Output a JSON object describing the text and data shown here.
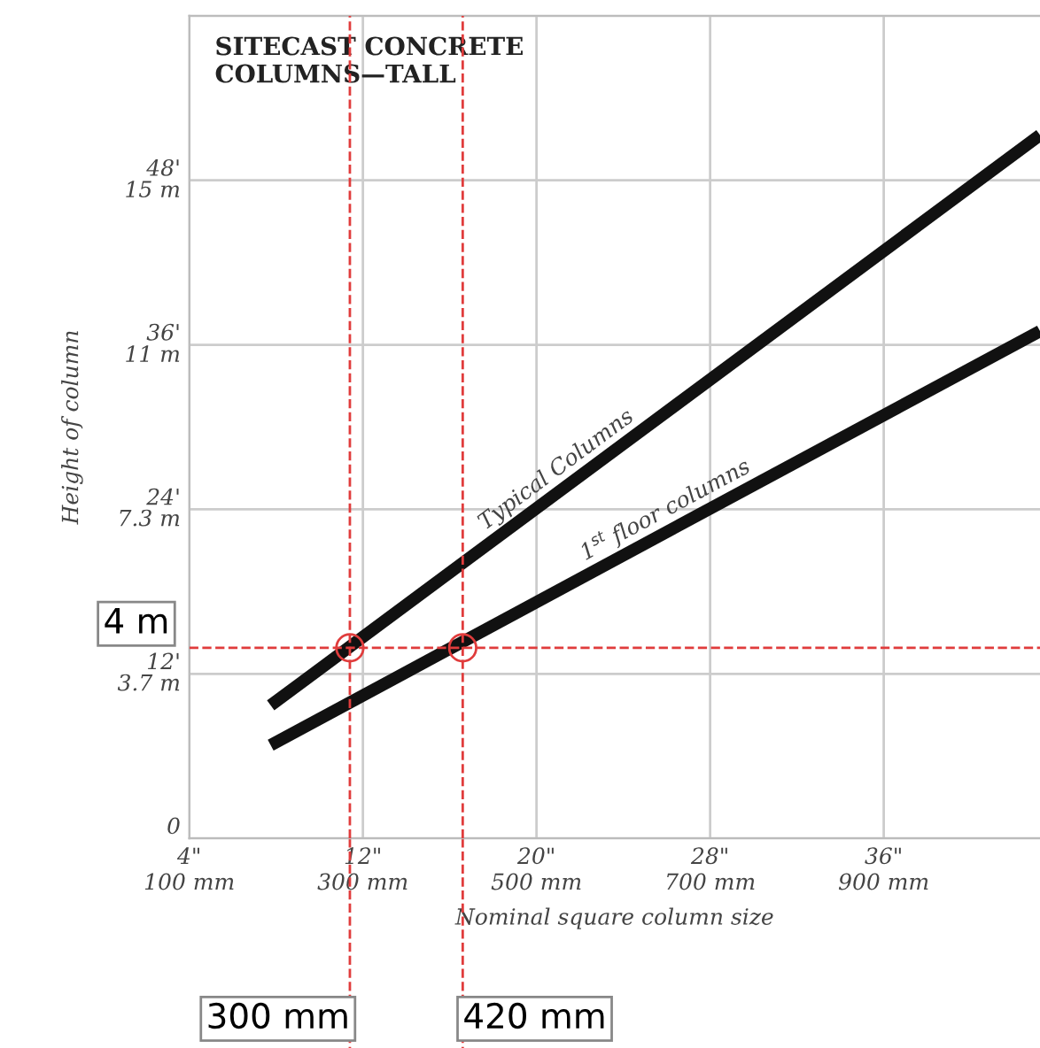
{
  "chart_data": {
    "type": "line",
    "title": "SITECAST CONCRETE\nCOLUMNS—TALL",
    "xlabel": "Nominal square column size",
    "y2label": "Height of column",
    "xlim": [
      4,
      43.2
    ],
    "ylim": [
      0,
      60
    ],
    "xticks": [
      {
        "value": 4,
        "label": "4\""
      },
      {
        "value": 12,
        "label": "12\""
      },
      {
        "value": 20,
        "label": "20\""
      },
      {
        "value": 28,
        "label": "28\""
      },
      {
        "value": 36,
        "label": "36\""
      }
    ],
    "x2lim": [
      100,
      1080
    ],
    "x2ticks": [
      {
        "value": 100,
        "label": "100 mm"
      },
      {
        "value": 300,
        "label": "300 mm"
      },
      {
        "value": 500,
        "label": "500 mm"
      },
      {
        "value": 700,
        "label": "700 mm"
      },
      {
        "value": 900,
        "label": "900 mm"
      }
    ],
    "yticks": [
      0,
      {
        "value": 12,
        "label": "12'"
      },
      {
        "value": 24,
        "label": "24'"
      },
      {
        "value": 36,
        "label": "36'"
      },
      {
        "value": 48,
        "label": "48'"
      },
      {
        "value": 60,
        "label": null
      }
    ],
    "y2lim": [
      0,
      18.29
    ],
    "y2ticks": [
      {
        "value": 3.66,
        "label": "3.7 m"
      },
      {
        "value": 7.32,
        "label": "7.3 m"
      },
      {
        "value": 10.97,
        "label": "11 m"
      },
      {
        "value": 14.63,
        "label": "15 m"
      }
    ],
    "grid": true,
    "line_style": "solid",
    "marker": "none",
    "series": [
      {
        "name": "Typical Columns",
        "color": "#111111",
        "x": [
          7.75,
          43.2
        ],
        "values": [
          9.7,
          51.3
        ]
      },
      {
        "name": "1$^{st}$ floor columns",
        "color": "#111111",
        "x": [
          7.75,
          43.2
        ],
        "values": [
          6.8,
          37.0
        ]
      },
      {
        "type": "scatter",
        "color": "#e03c3c",
        "marker": "circle",
        "x": [
          11.4,
          16.6
        ],
        "values": [
          13.9,
          13.9
        ]
      }
    ],
    "ref_lines": [
      {
        "axis": "y",
        "value": 13.9,
        "label": "4 m",
        "color": "#e03c3c",
        "line_style": "dashed"
      },
      {
        "axis": "x",
        "value": 11.4,
        "label": "300 mm",
        "color": "#e03c3c",
        "line_style": "dashed"
      },
      {
        "axis": "x",
        "value": 16.6,
        "label": "420 mm",
        "color": "#e03c3c",
        "line_style": "dashed"
      }
    ]
  }
}
